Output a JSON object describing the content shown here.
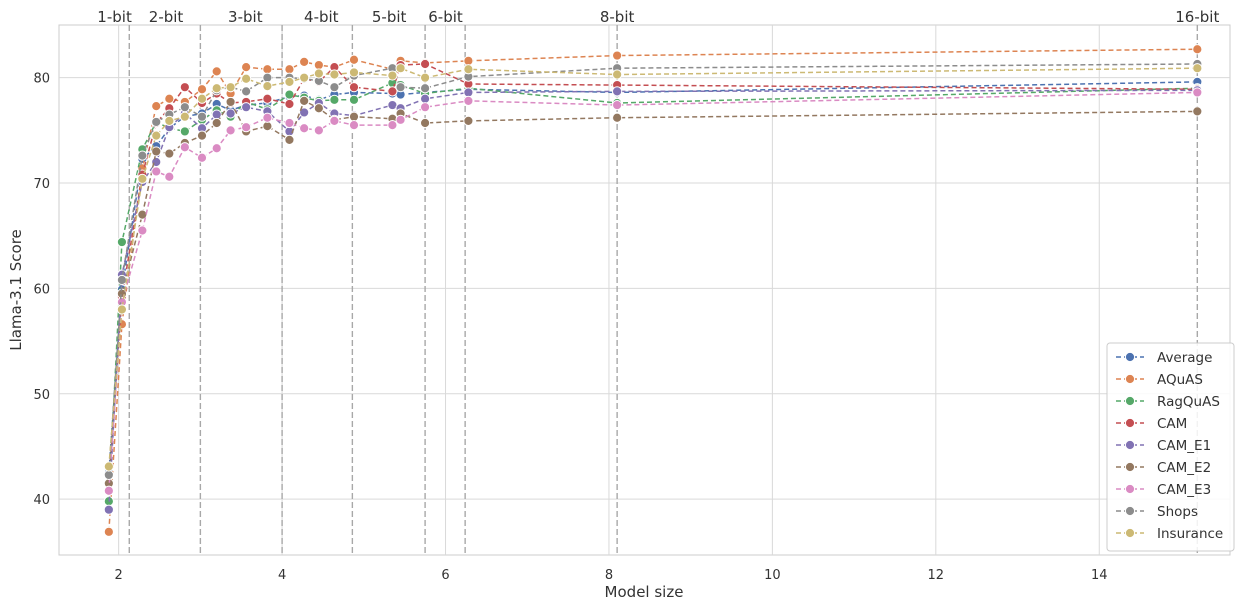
{
  "chart_data": {
    "type": "line",
    "xlabel": "Model size",
    "ylabel": "Llama-3.1 Score",
    "xlim": [
      1.27,
      15.6
    ],
    "ylim": [
      34.7,
      85.0
    ],
    "xticks": [
      2,
      4,
      6,
      8,
      10,
      12,
      14
    ],
    "yticks": [
      40,
      50,
      60,
      70,
      80
    ],
    "grid": true,
    "legend_position": "bottom-right",
    "line_style": "dashed",
    "bit_markers": [
      {
        "label": "1-bit",
        "x": 2.13
      },
      {
        "label": "2-bit",
        "x": 3.0
      },
      {
        "label": "3-bit",
        "x": 4.0
      },
      {
        "label": "4-bit",
        "x": 4.86
      },
      {
        "label": "5-bit",
        "x": 5.75
      },
      {
        "label": "6-bit",
        "x": 6.24
      },
      {
        "label": "8-bit",
        "x": 8.1
      },
      {
        "label": "16-bit",
        "x": 15.2
      }
    ],
    "bit_label_x": [
      1.95,
      2.58,
      3.55,
      4.48,
      5.31,
      6.0,
      8.1,
      15.2
    ],
    "x": [
      1.88,
      2.04,
      2.29,
      2.46,
      2.62,
      2.81,
      3.02,
      3.2,
      3.37,
      3.56,
      3.82,
      4.09,
      4.27,
      4.45,
      4.64,
      4.88,
      5.35,
      5.45,
      5.75,
      6.28,
      8.1,
      15.2
    ],
    "series": [
      {
        "name": "Average",
        "color": "#4c72b0",
        "values": [
          42.5,
          59.9,
          72.3,
          73.5,
          75.2,
          76.3,
          76.6,
          77.5,
          76.9,
          77.4,
          77.6,
          78.2,
          78.3,
          77.9,
          78.4,
          78.6,
          78.5,
          78.4,
          78.6,
          78.9,
          78.6,
          79.6
        ]
      },
      {
        "name": "AQuAS",
        "color": "#dd8452",
        "values": [
          36.9,
          56.6,
          71.4,
          77.3,
          78.0,
          77.7,
          78.9,
          80.6,
          78.5,
          81.0,
          80.8,
          80.8,
          81.5,
          81.2,
          81.0,
          81.7,
          80.8,
          81.6,
          81.4,
          81.6,
          82.1,
          82.7
        ]
      },
      {
        "name": "RagQuAS",
        "color": "#55a868",
        "values": [
          39.8,
          64.4,
          73.2,
          75.8,
          75.2,
          74.9,
          76.0,
          76.9,
          76.3,
          77.7,
          77.0,
          78.4,
          78.1,
          77.8,
          77.9,
          77.9,
          79.5,
          79.3,
          78.5,
          79.0,
          77.6,
          79.0
        ]
      },
      {
        "name": "CAM",
        "color": "#c44e52",
        "values": [
          41.4,
          59.2,
          70.8,
          75.7,
          77.1,
          79.1,
          77.6,
          78.5,
          77.6,
          77.7,
          78.0,
          77.5,
          79.9,
          79.6,
          81.0,
          79.1,
          78.7,
          81.2,
          81.3,
          79.4,
          79.3,
          78.9
        ]
      },
      {
        "name": "CAM_E1",
        "color": "#8172b3",
        "values": [
          39.0,
          61.3,
          70.1,
          72.0,
          75.3,
          76.6,
          75.2,
          76.5,
          76.6,
          77.2,
          76.8,
          74.9,
          76.7,
          77.6,
          76.6,
          76.4,
          77.4,
          77.1,
          78.0,
          78.6,
          78.7,
          78.8
        ]
      },
      {
        "name": "CAM_E2",
        "color": "#937860",
        "values": [
          41.5,
          59.5,
          67.0,
          73.0,
          72.8,
          73.8,
          74.5,
          75.7,
          77.7,
          74.9,
          75.4,
          74.1,
          77.8,
          77.1,
          76.0,
          76.3,
          76.1,
          76.6,
          75.7,
          75.9,
          76.2,
          76.8
        ]
      },
      {
        "name": "CAM_E3",
        "color": "#da8bc3",
        "values": [
          40.8,
          58.7,
          65.5,
          71.1,
          70.6,
          73.4,
          72.4,
          73.3,
          75.0,
          75.3,
          76.2,
          75.7,
          75.2,
          75.0,
          75.9,
          75.5,
          75.5,
          76.0,
          77.2,
          77.8,
          77.4,
          78.6
        ]
      },
      {
        "name": "Shops",
        "color": "#8c8c8c",
        "values": [
          42.3,
          60.8,
          72.6,
          75.8,
          76.5,
          77.2,
          76.3,
          78.8,
          79.1,
          78.7,
          80.0,
          80.0,
          79.9,
          79.7,
          79.1,
          80.2,
          80.9,
          79.1,
          79.0,
          80.1,
          80.9,
          81.3
        ]
      },
      {
        "name": "Insurance",
        "color": "#ccb974",
        "values": [
          43.1,
          58.0,
          70.4,
          74.5,
          75.9,
          76.3,
          78.0,
          79.0,
          79.1,
          79.9,
          79.2,
          79.6,
          80.0,
          80.4,
          80.3,
          80.5,
          80.2,
          80.9,
          80.0,
          80.8,
          80.3,
          80.9
        ]
      }
    ]
  }
}
